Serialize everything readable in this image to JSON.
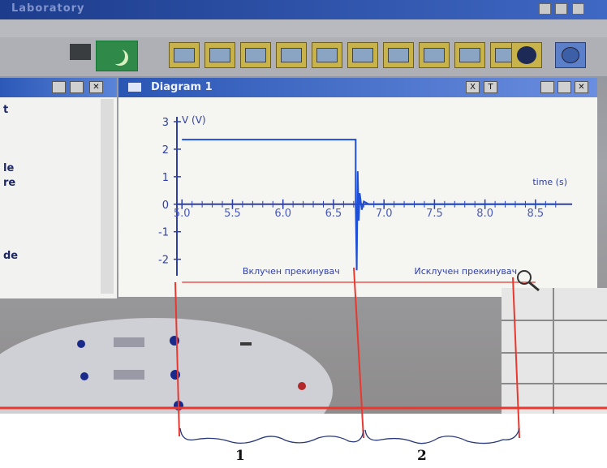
{
  "window": {
    "title": "Laboratory"
  },
  "diagram": {
    "title": "Diagram 1",
    "buttons": [
      "X",
      "T"
    ]
  },
  "left_panel": {
    "fragments": [
      "t",
      "le",
      "re",
      "de"
    ]
  },
  "chart_data": {
    "type": "line",
    "title": "",
    "ylabel": "V (V)",
    "xlabel": "time (s)",
    "xlim": [
      4.95,
      8.75
    ],
    "ylim": [
      -2.6,
      3.0
    ],
    "x_ticks": [
      "5.0",
      "5.5",
      "6.0",
      "6.5",
      "7.0",
      "7.5",
      "8.0",
      "8.5"
    ],
    "y_ticks": [
      "3",
      "2",
      "1",
      "0",
      "-1",
      "-2"
    ],
    "series": [
      {
        "name": "",
        "x": [
          5.0,
          6.72,
          6.72,
          6.73,
          6.74,
          6.75,
          6.76,
          6.78,
          6.8,
          6.85,
          6.9,
          8.7
        ],
        "y": [
          2.35,
          2.35,
          0.0,
          -2.4,
          1.2,
          -0.6,
          0.4,
          -0.2,
          0.1,
          0.0,
          0.0,
          0.0
        ]
      }
    ],
    "annotations": [
      {
        "text": "Вклучен прекинувач",
        "x": 5.6
      },
      {
        "text": "Исклучен прекинувач",
        "x": 7.3
      }
    ]
  },
  "braces": {
    "first": "1",
    "second": "2"
  },
  "colors": {
    "title_bar": "#2a56b4",
    "signal": "#1f4fd6",
    "marker": "#e8382f"
  }
}
